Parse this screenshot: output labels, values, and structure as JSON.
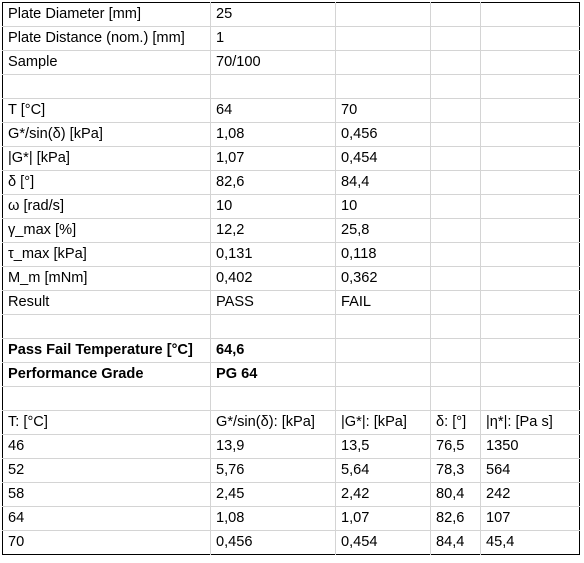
{
  "rows": [
    [
      "Plate Diameter [mm]",
      "25",
      "",
      "",
      ""
    ],
    [
      "Plate Distance (nom.) [mm]",
      "1",
      "",
      "",
      ""
    ],
    [
      "Sample",
      "70/100",
      "",
      "",
      ""
    ],
    [
      "",
      "",
      "",
      "",
      ""
    ],
    [
      "T [°C]",
      "64",
      "70",
      "",
      ""
    ],
    [
      "G*/sin(δ) [kPa]",
      "1,08",
      "0,456",
      "",
      ""
    ],
    [
      "|G*| [kPa]",
      "1,07",
      "0,454",
      "",
      ""
    ],
    [
      "δ [°]",
      "82,6",
      "84,4",
      "",
      ""
    ],
    [
      "ω [rad/s]",
      "10",
      "10",
      "",
      ""
    ],
    [
      "γ_max [%]",
      "12,2",
      "25,8",
      "",
      ""
    ],
    [
      "τ_max [kPa]",
      "0,131",
      "0,118",
      "",
      ""
    ],
    [
      "M_m [mNm]",
      "0,402",
      "0,362",
      "",
      ""
    ],
    [
      "Result",
      "PASS",
      "FAIL",
      "",
      ""
    ],
    [
      "",
      "",
      "",
      "",
      ""
    ],
    [
      "Pass Fail Temperature [°C]",
      "64,6",
      "",
      "",
      ""
    ],
    [
      "Performance Grade",
      "PG 64",
      "",
      "",
      ""
    ],
    [
      "",
      "",
      "",
      "",
      ""
    ],
    [
      "T: [°C]",
      "G*/sin(δ): [kPa]",
      "|G*|: [kPa]",
      "δ: [°]",
      "|η*|: [Pa s]"
    ],
    [
      "46",
      "13,9",
      "13,5",
      "76,5",
      "1350"
    ],
    [
      "52",
      "5,76",
      "5,64",
      "78,3",
      "564"
    ],
    [
      "58",
      "2,45",
      "2,42",
      "80,4",
      "242"
    ],
    [
      "64",
      "1,08",
      "1,07",
      "82,6",
      "107"
    ],
    [
      "70",
      "0,456",
      "0,454",
      "84,4",
      "45,4"
    ]
  ],
  "bold_rows": [
    14,
    15
  ]
}
